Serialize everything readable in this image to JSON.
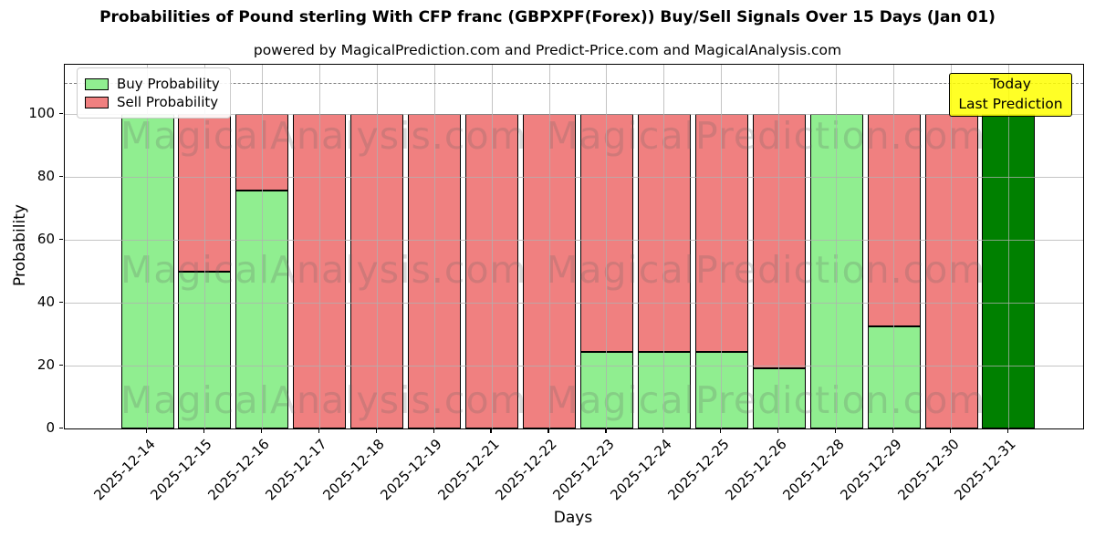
{
  "header": {
    "title": "Probabilities of Pound sterling With CFP franc (GBPXPF(Forex)) Buy/Sell Signals Over 15 Days (Jan 01)",
    "subtitle": "powered by MagicalPrediction.com and Predict-Price.com and MagicalAnalysis.com"
  },
  "legend": {
    "items": [
      {
        "label": "Buy Probability",
        "color": "#90EE90"
      },
      {
        "label": "Sell Probability",
        "color": "#F08080"
      }
    ]
  },
  "annotation": {
    "line1": "Today",
    "line2": "Last Prediction"
  },
  "watermark": {
    "left_text": "MagicalAnalysis.com",
    "right_text": "MagicalPrediction.com"
  },
  "axes": {
    "xlabel": "Days",
    "ylabel": "Probability",
    "yticks": [
      0,
      20,
      40,
      60,
      80,
      100
    ]
  },
  "colors": {
    "buy": "#90EE90",
    "sell": "#F08080",
    "today_bar": "#008000",
    "annotation_bg": "#FFFF00",
    "grid": "#B0B0B0",
    "dashed_line": "#7F7F7F",
    "bar_edge": "#000000"
  },
  "chart_data": {
    "type": "bar",
    "stacked": true,
    "title": "Probabilities of Pound sterling With CFP franc (GBPXPF(Forex)) Buy/Sell Signals Over 15 Days (Jan 01)",
    "xlabel": "Days",
    "ylabel": "Probability",
    "ylim": [
      0,
      116
    ],
    "grid": true,
    "legend_position": "upper left",
    "dashed_line_y": 110,
    "categories": [
      "2025-12-14",
      "2025-12-15",
      "2025-12-16",
      "2025-12-17",
      "2025-12-18",
      "2025-12-19",
      "2025-12-21",
      "2025-12-22",
      "2025-12-23",
      "2025-12-24",
      "2025-12-25",
      "2025-12-26",
      "2025-12-28",
      "2025-12-29",
      "2025-12-30",
      "2025-12-31"
    ],
    "series": [
      {
        "name": "Buy Probability",
        "color": "#90EE90",
        "values": [
          100,
          50,
          75.6,
          0,
          0,
          0,
          0,
          0,
          24.4,
          24.4,
          24.4,
          19,
          100,
          32.5,
          0,
          100
        ]
      },
      {
        "name": "Sell Probability",
        "color": "#F08080",
        "values": [
          0,
          50,
          24.4,
          100,
          100,
          100,
          100,
          100,
          75.6,
          75.6,
          75.6,
          81,
          0,
          67.5,
          100,
          0
        ]
      }
    ],
    "today_index": 15,
    "today_color": "#008000"
  }
}
